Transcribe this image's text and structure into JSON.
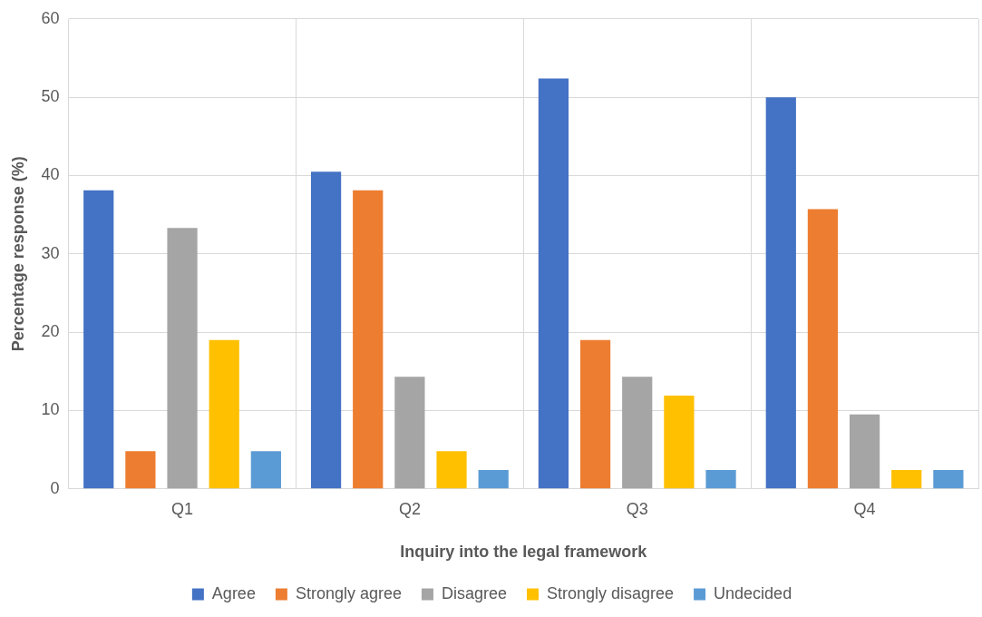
{
  "chart_data": {
    "type": "bar",
    "xlabel": "Inquiry into the legal framework",
    "ylabel": "Percentage response (%)",
    "categories": [
      "Q1",
      "Q2",
      "Q3",
      "Q4"
    ],
    "series": [
      {
        "name": "Agree",
        "color": "#4472c4",
        "values": [
          38.1,
          40.5,
          52.4,
          50.0
        ]
      },
      {
        "name": "Strongly agree",
        "color": "#ed7d31",
        "values": [
          4.8,
          38.1,
          19.0,
          35.7
        ]
      },
      {
        "name": "Disagree",
        "color": "#a5a5a5",
        "values": [
          33.3,
          14.3,
          14.3,
          9.5
        ]
      },
      {
        "name": "Strongly disagree",
        "color": "#ffc000",
        "values": [
          19.0,
          4.8,
          11.9,
          2.4
        ]
      },
      {
        "name": "Undecided",
        "color": "#5b9bd5",
        "values": [
          4.8,
          2.4,
          2.4,
          2.4
        ]
      }
    ],
    "ylim": [
      0,
      60
    ],
    "yticks": [
      0,
      10,
      20,
      30,
      40,
      50,
      60
    ],
    "grid": true,
    "legend": "bottom"
  }
}
